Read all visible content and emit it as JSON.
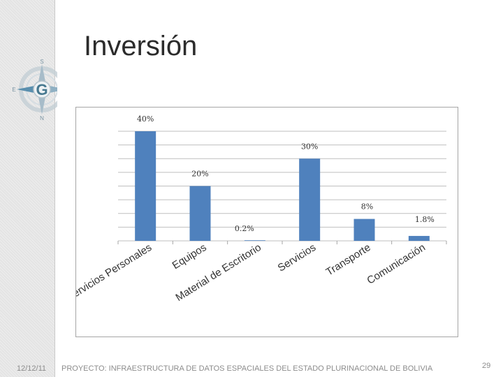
{
  "slide": {
    "title": "Inversión",
    "footer_date": "12/12/11",
    "footer_text": "PROYECTO: INFRAESTRUCTURA DE DATOS ESPACIALES DEL ESTADO PLURINACIONAL DE BOLIVIA",
    "page_number": "29",
    "logo": {
      "icon": "compass-rose-icon",
      "letters": {
        "north": "S",
        "south": "N",
        "west": "E",
        "center": "G"
      },
      "colors": {
        "ring": "#b9c7cf",
        "pointer": "#5a8fae",
        "dark": "#46788f"
      }
    }
  },
  "chart_data": {
    "type": "bar",
    "title": "",
    "xlabel": "",
    "ylabel": "",
    "categories": [
      "Servicios Personales",
      "Equipos",
      "Material de Escritorio",
      "Servicios",
      "Transporte",
      "Comunicación"
    ],
    "values": [
      40,
      20,
      0.2,
      30,
      8,
      1.8
    ],
    "value_labels": [
      "40%",
      "20%",
      "0.2%",
      "30%",
      "8%",
      "1.8%"
    ],
    "ylim": [
      0,
      40
    ],
    "grid": true,
    "legend": "none",
    "bar_color": "#4f81bd",
    "grid_color": "#bfbfbf"
  }
}
